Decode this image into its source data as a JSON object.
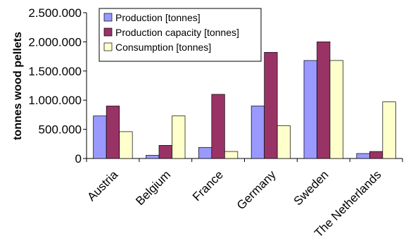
{
  "chart_data": {
    "type": "bar",
    "title": "",
    "xlabel": "",
    "ylabel": "tonnes wood pellets",
    "ylim": [
      0,
      2500000
    ],
    "yticks": [
      {
        "value": 0,
        "label": "0"
      },
      {
        "value": 500000,
        "label": "500.000"
      },
      {
        "value": 1000000,
        "label": "1.000.000"
      },
      {
        "value": 1500000,
        "label": "1.500.000"
      },
      {
        "value": 2000000,
        "label": "2.000.000"
      },
      {
        "value": 2500000,
        "label": "2.500.000"
      }
    ],
    "grid": false,
    "legend_position": "top-left inside plot",
    "categories": [
      "Austria",
      "Belgium",
      "France",
      "Germany",
      "Sweden",
      "The Netherlands"
    ],
    "series": [
      {
        "name": "Production [tonnes]",
        "color": "#9999ff",
        "values": [
          730000,
          55000,
          190000,
          900000,
          1680000,
          85000
        ]
      },
      {
        "name": "Production capacity [tonnes]",
        "color": "#993366",
        "values": [
          900000,
          225000,
          1100000,
          1820000,
          2000000,
          120000
        ]
      },
      {
        "name": "Consumption [tonnes]",
        "color": "#ffffcc",
        "values": [
          460000,
          730000,
          120000,
          560000,
          1680000,
          970000
        ]
      }
    ]
  }
}
